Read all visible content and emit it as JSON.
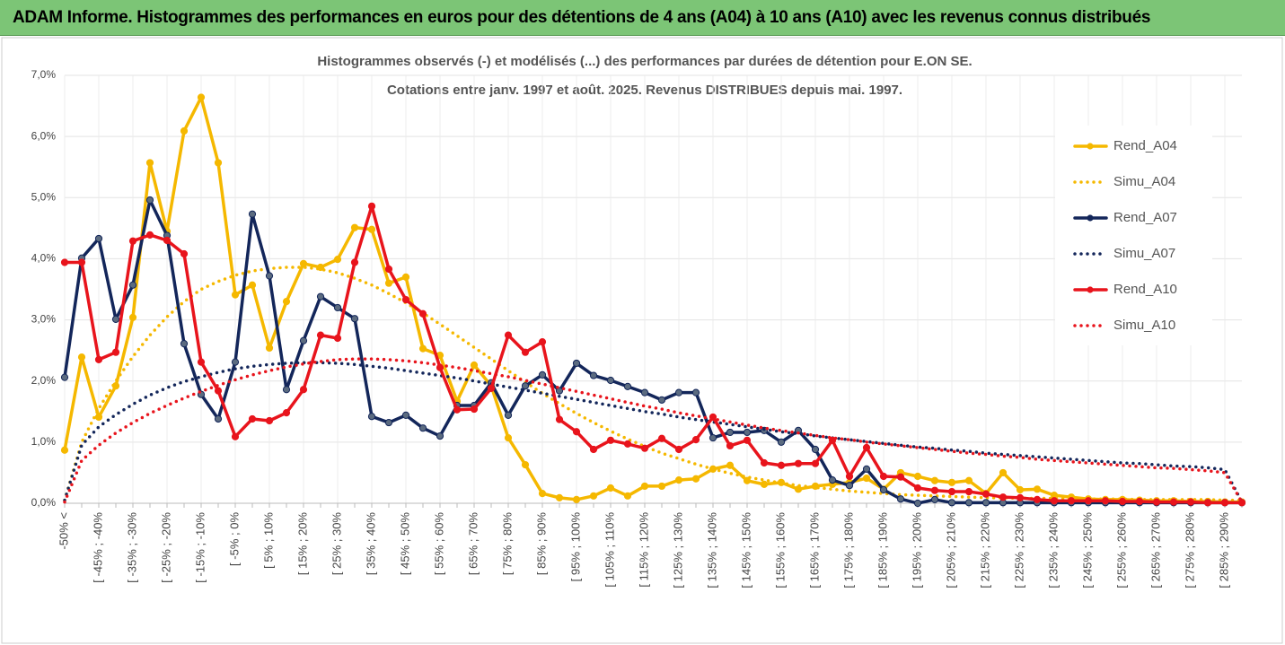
{
  "header": {
    "title": "ADAM Informe. Histogrammes des performances en euros pour des détentions de 4 ans (A04) à 10 ans (A10) avec les revenus connus distribués"
  },
  "chart_data": {
    "type": "line",
    "title": "Histogrammes observés (-) et modélisés (...) des performances par durées de détention pour E.ON SE.",
    "subtitle": "Cotations entre janv. 1997 et août. 2025. Revenus DISTRIBUES depuis mai. 1997.",
    "categories": [
      "-50% <",
      null,
      "[ -45% ; -40%",
      null,
      "[ -35% ; -30%",
      null,
      "[ -25% ; -20%",
      null,
      "[ -15% ; -10%",
      null,
      "[ -5% ; 0%",
      null,
      "[ 5% ; 10%",
      null,
      "[ 15% ; 20%",
      null,
      "[ 25% ; 30%",
      null,
      "[ 35% ; 40%",
      null,
      "[ 45% ; 50%",
      null,
      "[ 55% ; 60%",
      null,
      "[ 65% ; 70%",
      null,
      "[ 75% ; 80%",
      null,
      "[ 85% ; 90%",
      null,
      "[ 95% ; 100%",
      null,
      "[ 105% ; 110%",
      null,
      "[ 115% ; 120%",
      null,
      "[ 125% ; 130%",
      null,
      "[ 135% ; 140%",
      null,
      "[ 145% ; 150%",
      null,
      "[ 155% ; 160%",
      null,
      "[ 165% ; 170%",
      null,
      "[ 175% ; 180%",
      null,
      "[ 185% ; 190%",
      null,
      "[ 195% ; 200%",
      null,
      "[ 205% ; 210%",
      null,
      "[ 215% ; 220%",
      null,
      "[ 225% ; 230%",
      null,
      "[ 235% ; 240%",
      null,
      "[ 245% ; 250%",
      null,
      "[ 255% ; 260%",
      null,
      "[ 265% ; 270%",
      null,
      "[ 275% ; 280%",
      null,
      "[ 285% ; 290%",
      null
    ],
    "ylim": [
      0,
      7
    ],
    "yticks": [
      {
        "value": 0,
        "label": "0,0%"
      },
      {
        "value": 1,
        "label": "1,0%"
      },
      {
        "value": 2,
        "label": "2,0%"
      },
      {
        "value": 3,
        "label": "3,0%"
      },
      {
        "value": 4,
        "label": "4,0%"
      },
      {
        "value": 5,
        "label": "5,0%"
      },
      {
        "value": 6,
        "label": "6,0%"
      },
      {
        "value": 7,
        "label": "7,0%"
      }
    ],
    "grid": true,
    "legend": "right",
    "series": [
      {
        "name": "Rend_A04",
        "color": "#f5b800",
        "line_style": "solid",
        "markers": true,
        "values": [
          0.87,
          2.39,
          1.41,
          1.92,
          3.04,
          5.57,
          4.45,
          6.09,
          6.64,
          5.57,
          3.41,
          3.57,
          2.54,
          3.3,
          3.92,
          3.86,
          3.99,
          4.51,
          4.48,
          3.6,
          3.7,
          2.53,
          2.42,
          1.67,
          2.26,
          1.92,
          1.07,
          0.63,
          0.16,
          0.09,
          0.06,
          0.12,
          0.25,
          0.12,
          0.28,
          0.28,
          0.38,
          0.4,
          0.56,
          0.62,
          0.37,
          0.31,
          0.34,
          0.23,
          0.28,
          0.31,
          0.34,
          0.41,
          0.23,
          0.5,
          0.44,
          0.37,
          0.34,
          0.37,
          0.16,
          0.5,
          0.22,
          0.23,
          0.13,
          0.1,
          0.07,
          0.06,
          0.06,
          0.05,
          0.04,
          0.04,
          0.03,
          0.03,
          0.02,
          0.02
        ]
      },
      {
        "name": "Simu_A04",
        "color": "#f5b800",
        "line_style": "dotted",
        "markers": false,
        "values": [
          0.05,
          1.0,
          1.55,
          2.0,
          2.4,
          2.75,
          3.05,
          3.3,
          3.5,
          3.63,
          3.73,
          3.8,
          3.84,
          3.86,
          3.86,
          3.83,
          3.77,
          3.68,
          3.57,
          3.43,
          3.28,
          3.11,
          2.93,
          2.74,
          2.55,
          2.36,
          2.17,
          1.98,
          1.8,
          1.63,
          1.47,
          1.32,
          1.18,
          1.05,
          0.93,
          0.82,
          0.73,
          0.64,
          0.56,
          0.49,
          0.43,
          0.38,
          0.33,
          0.29,
          0.26,
          0.23,
          0.2,
          0.18,
          0.16,
          0.14,
          0.13,
          0.12,
          0.11,
          0.1,
          0.09,
          0.09,
          0.08,
          0.08,
          0.08,
          0.07,
          0.07,
          0.07,
          0.07,
          0.06,
          0.06,
          0.06,
          0.06,
          0.06,
          0.05,
          0.05
        ]
      },
      {
        "name": "Rend_A07",
        "color": "#13265a",
        "line_style": "solid",
        "markers": true,
        "values": [
          2.06,
          4.01,
          4.33,
          3.01,
          3.57,
          4.96,
          4.38,
          2.61,
          1.78,
          1.38,
          2.31,
          4.73,
          3.72,
          1.86,
          2.66,
          3.38,
          3.2,
          3.02,
          1.42,
          1.32,
          1.44,
          1.23,
          1.1,
          1.6,
          1.6,
          1.97,
          1.44,
          1.92,
          2.1,
          1.84,
          2.29,
          2.09,
          2.01,
          1.91,
          1.81,
          1.69,
          1.81,
          1.81,
          1.07,
          1.16,
          1.16,
          1.19,
          1.0,
          1.19,
          0.88,
          0.38,
          0.29,
          0.56,
          0.22,
          0.07,
          0.0,
          0.06,
          0.01,
          0.01,
          0.01,
          0.01,
          0.01,
          0.01,
          0.01,
          0.01,
          0.01,
          0.01,
          0.01,
          0.01,
          0.01,
          0.01,
          0.01,
          0.01,
          0.01,
          0.01
        ]
      },
      {
        "name": "Simu_A07",
        "color": "#13265a",
        "line_style": "dotted",
        "markers": false,
        "values": [
          0.05,
          0.95,
          1.25,
          1.45,
          1.62,
          1.77,
          1.89,
          1.99,
          2.07,
          2.14,
          2.2,
          2.24,
          2.27,
          2.29,
          2.3,
          2.3,
          2.29,
          2.27,
          2.24,
          2.21,
          2.17,
          2.13,
          2.09,
          2.05,
          2.0,
          1.95,
          1.9,
          1.85,
          1.8,
          1.75,
          1.7,
          1.65,
          1.6,
          1.55,
          1.5,
          1.46,
          1.41,
          1.37,
          1.33,
          1.29,
          1.25,
          1.21,
          1.17,
          1.14,
          1.1,
          1.07,
          1.04,
          1.01,
          0.98,
          0.95,
          0.92,
          0.9,
          0.87,
          0.85,
          0.82,
          0.8,
          0.78,
          0.76,
          0.74,
          0.72,
          0.7,
          0.68,
          0.66,
          0.65,
          0.63,
          0.61,
          0.6,
          0.58,
          0.55,
          0.02
        ]
      },
      {
        "name": "Rend_A10",
        "color": "#e8141c",
        "line_style": "solid",
        "markers": true,
        "values": [
          3.94,
          3.94,
          2.35,
          2.47,
          4.29,
          4.39,
          4.3,
          4.08,
          2.31,
          1.84,
          1.09,
          1.38,
          1.35,
          1.48,
          1.86,
          2.75,
          2.7,
          3.94,
          4.86,
          3.83,
          3.33,
          3.1,
          2.22,
          1.53,
          1.54,
          1.88,
          2.75,
          2.47,
          2.64,
          1.37,
          1.17,
          0.88,
          1.03,
          0.97,
          0.9,
          1.06,
          0.88,
          1.04,
          1.41,
          0.94,
          1.03,
          0.66,
          0.62,
          0.65,
          0.65,
          1.03,
          0.44,
          0.91,
          0.44,
          0.43,
          0.25,
          0.21,
          0.19,
          0.19,
          0.15,
          0.1,
          0.09,
          0.06,
          0.04,
          0.04,
          0.04,
          0.04,
          0.03,
          0.03,
          0.02,
          0.02,
          0.02,
          0.01,
          0.01,
          0.01
        ]
      },
      {
        "name": "Simu_A10",
        "color": "#e8141c",
        "line_style": "dotted",
        "markers": false,
        "values": [
          0.02,
          0.7,
          0.95,
          1.15,
          1.32,
          1.47,
          1.6,
          1.72,
          1.83,
          1.93,
          2.02,
          2.1,
          2.17,
          2.23,
          2.28,
          2.32,
          2.35,
          2.36,
          2.36,
          2.35,
          2.33,
          2.3,
          2.26,
          2.22,
          2.17,
          2.12,
          2.07,
          2.01,
          1.95,
          1.89,
          1.83,
          1.77,
          1.71,
          1.65,
          1.59,
          1.54,
          1.48,
          1.43,
          1.38,
          1.33,
          1.28,
          1.23,
          1.19,
          1.15,
          1.11,
          1.07,
          1.04,
          1.0,
          0.97,
          0.94,
          0.91,
          0.88,
          0.85,
          0.82,
          0.8,
          0.77,
          0.75,
          0.72,
          0.7,
          0.68,
          0.66,
          0.64,
          0.62,
          0.6,
          0.58,
          0.57,
          0.55,
          0.53,
          0.5,
          0.02
        ]
      }
    ]
  }
}
